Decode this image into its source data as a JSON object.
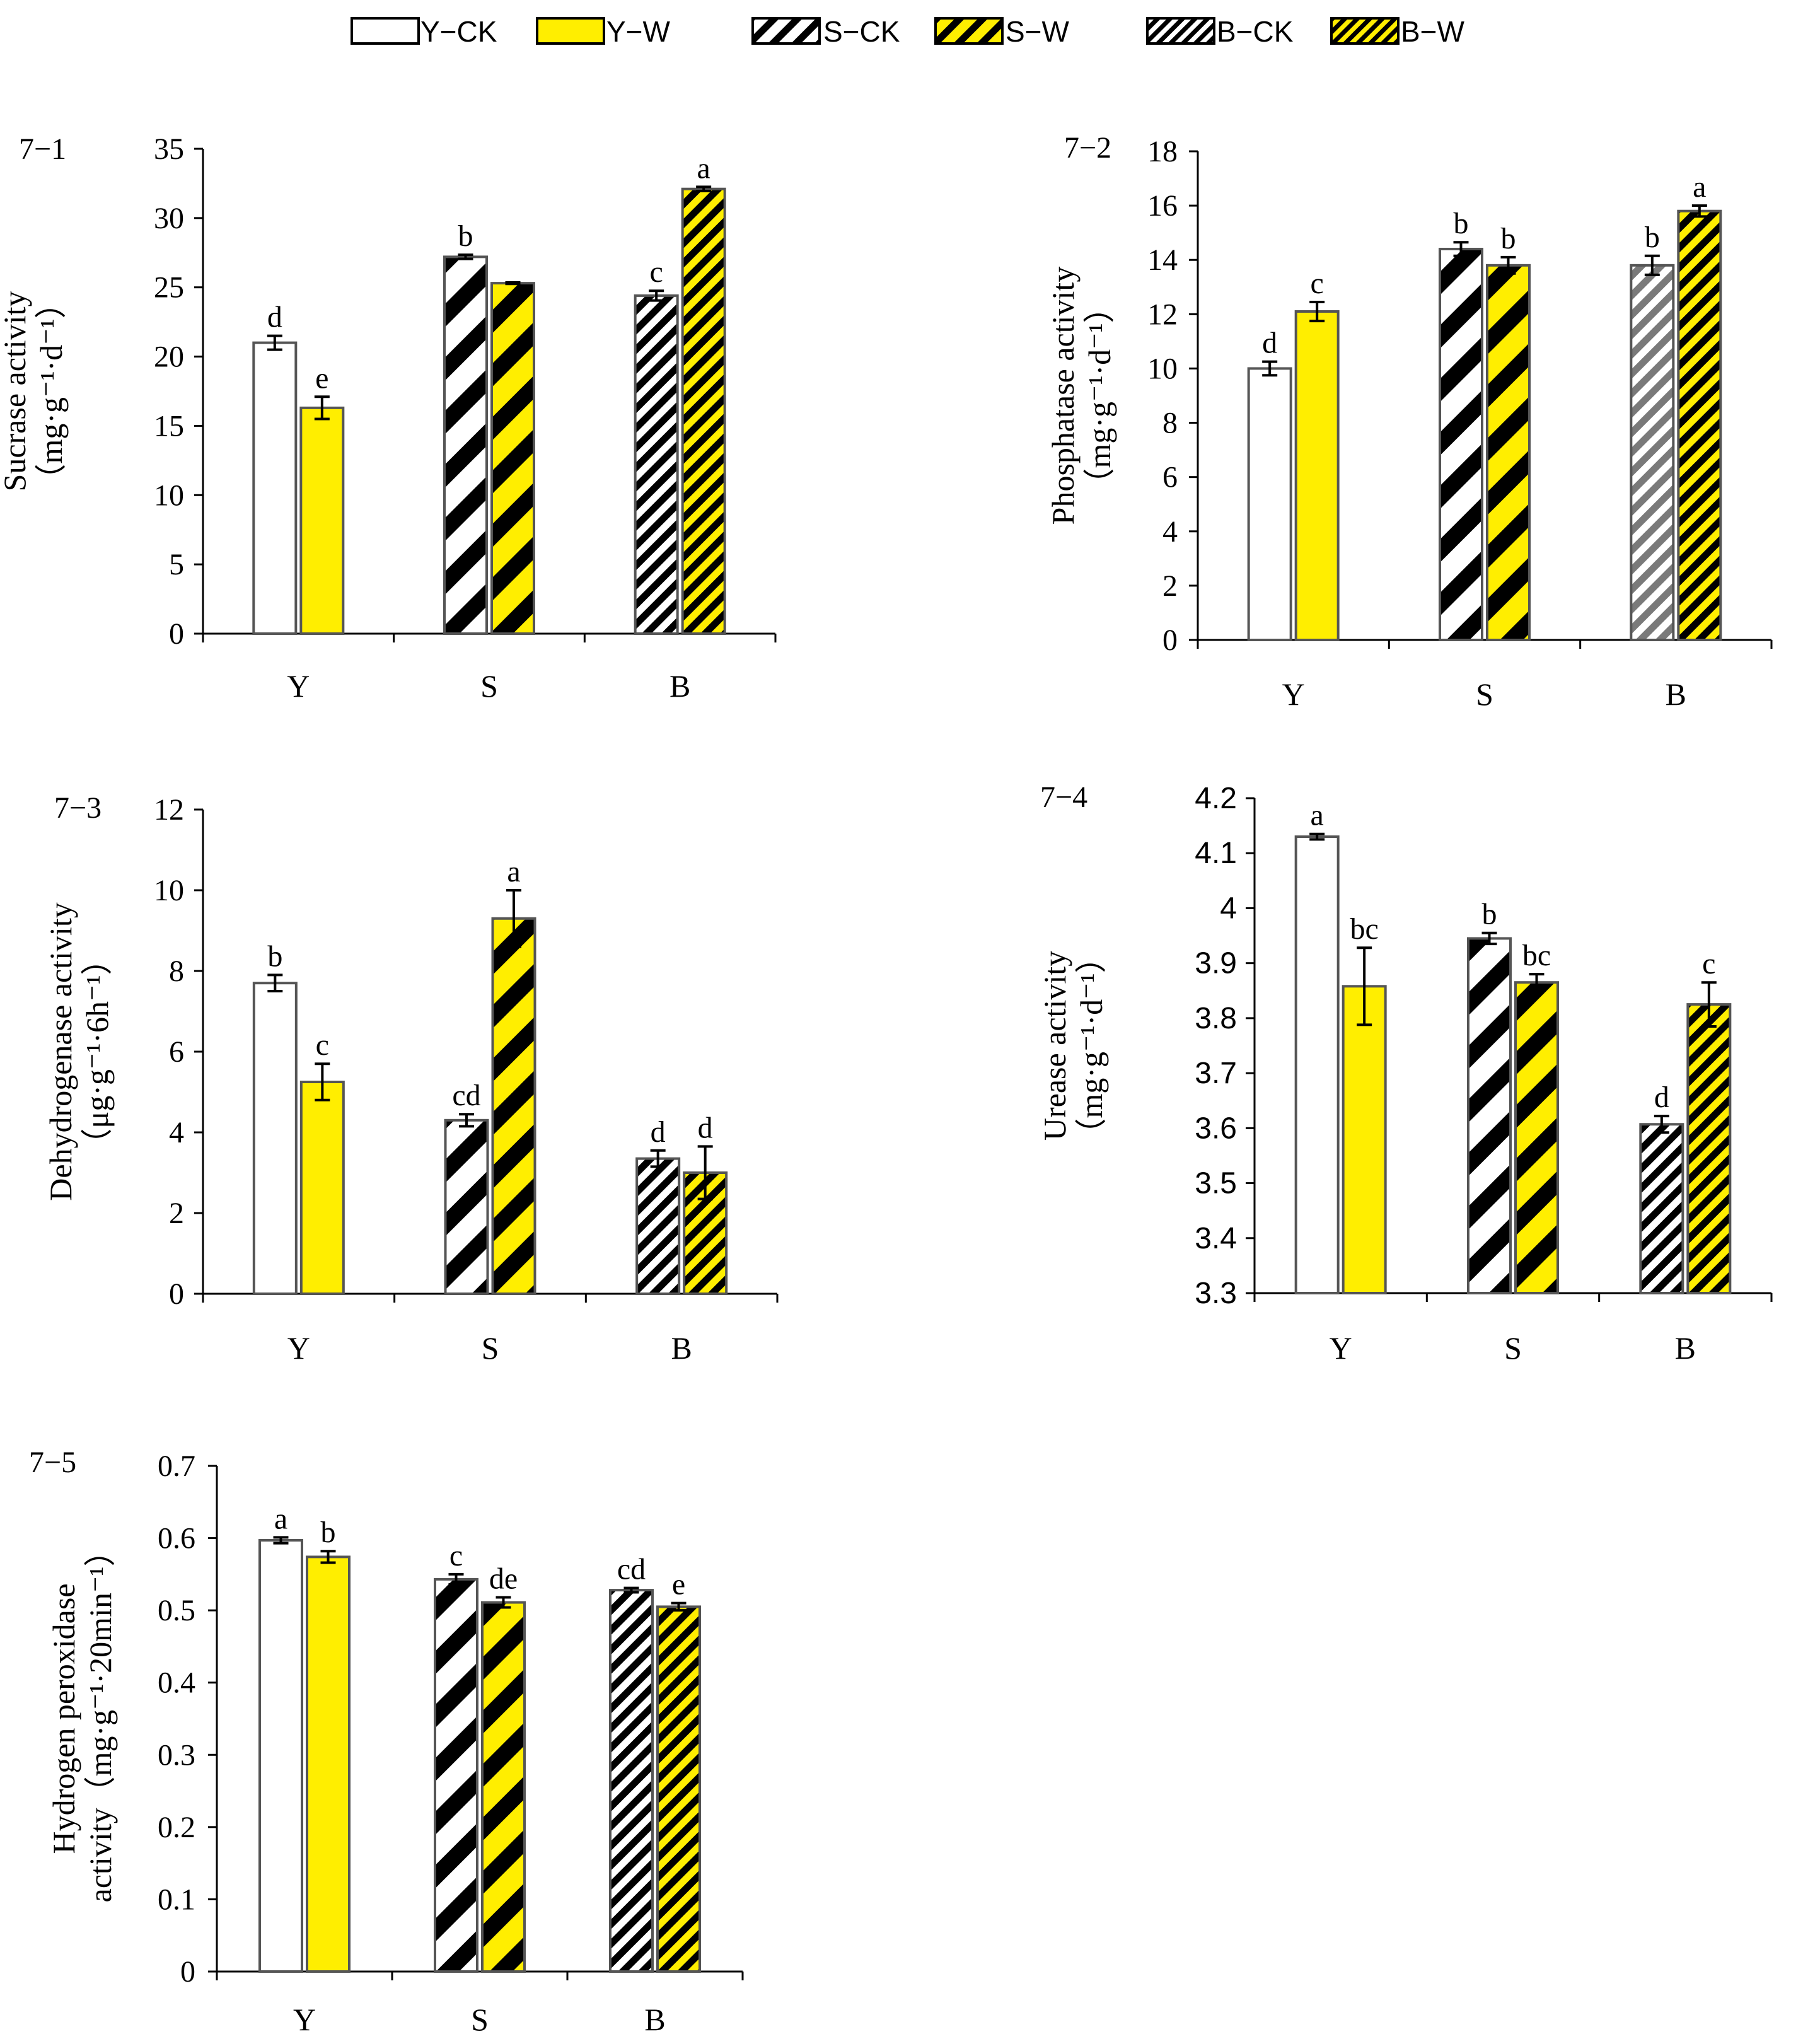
{
  "legend": [
    {
      "label": "Y−CK",
      "fill": "#ffffff",
      "pattern": "none"
    },
    {
      "label": "Y−W",
      "fill": "#ffee00",
      "pattern": "none"
    },
    {
      "label": "S−CK",
      "fill": "#ffffff",
      "pattern": "wide-diagonal"
    },
    {
      "label": "S−W",
      "fill": "#ffee00",
      "pattern": "wide-diagonal"
    },
    {
      "label": "B−CK",
      "fill": "#ffffff",
      "pattern": "narrow-diagonal"
    },
    {
      "label": "B−W",
      "fill": "#ffee00",
      "pattern": "narrow-diagonal"
    }
  ],
  "colors": {
    "yellow": "#ffee00",
    "stripe": "#000000",
    "grey_stripe": "#7a7a7a",
    "bar_outline": "#555555"
  },
  "chart_data": [
    {
      "id": "7-1",
      "type": "bar",
      "panel_label": "7−1",
      "ylabel": [
        "Sucrase activity",
        "（mg·g⁻¹·d⁻¹）"
      ],
      "categories": [
        "Y",
        "S",
        "B"
      ],
      "ylim": [
        0,
        35
      ],
      "yticks": [
        "0",
        "5",
        "10",
        "15",
        "20",
        "25",
        "30",
        "35"
      ],
      "series": [
        {
          "name": "CK",
          "values": [
            21.0,
            27.2,
            24.4
          ],
          "errors": [
            0.5,
            0.15,
            0.35
          ],
          "letters": [
            "d",
            "b",
            "c"
          ]
        },
        {
          "name": "W",
          "values": [
            16.3,
            25.3,
            32.1
          ],
          "errors": [
            0.8,
            0.05,
            0.15
          ],
          "letters": [
            "e",
            "",
            "a"
          ]
        }
      ]
    },
    {
      "id": "7-2",
      "type": "bar",
      "panel_label": "7−2",
      "ylabel": [
        "Phosphatase activity",
        "（mg·g⁻¹·d⁻¹）"
      ],
      "categories": [
        "Y",
        "S",
        "B"
      ],
      "ylim": [
        0,
        18
      ],
      "yticks": [
        "0",
        "2",
        "4",
        "6",
        "8",
        "10",
        "12",
        "14",
        "16",
        "18"
      ],
      "series": [
        {
          "name": "CK",
          "values": [
            10.0,
            14.4,
            13.8
          ],
          "errors": [
            0.25,
            0.25,
            0.35
          ],
          "letters": [
            "d",
            "b",
            "b"
          ]
        },
        {
          "name": "W",
          "values": [
            12.1,
            13.8,
            15.8
          ],
          "errors": [
            0.35,
            0.3,
            0.2
          ],
          "letters": [
            "c",
            "b",
            "a"
          ]
        }
      ]
    },
    {
      "id": "7-3",
      "type": "bar",
      "panel_label": "7−3",
      "ylabel": [
        "Dehydrogenase activity",
        "（μg·g⁻¹·6h⁻¹）"
      ],
      "categories": [
        "Y",
        "S",
        "B"
      ],
      "ylim": [
        0,
        12
      ],
      "yticks": [
        "0",
        "2",
        "4",
        "6",
        "8",
        "10",
        "12"
      ],
      "series": [
        {
          "name": "CK",
          "values": [
            7.7,
            4.3,
            3.35
          ],
          "errors": [
            0.2,
            0.15,
            0.2
          ],
          "letters": [
            "b",
            "cd",
            "d"
          ]
        },
        {
          "name": "W",
          "values": [
            5.25,
            9.3,
            3.0
          ],
          "errors": [
            0.45,
            0.7,
            0.65
          ],
          "letters": [
            "c",
            "a",
            "d"
          ]
        }
      ]
    },
    {
      "id": "7-4",
      "type": "bar",
      "panel_label": "7−4",
      "ylabel": [
        "Urease activity",
        "（mg·g⁻¹·d⁻¹）"
      ],
      "categories": [
        "Y",
        "S",
        "B"
      ],
      "ylim": [
        3.3,
        4.2
      ],
      "yticks": [
        "3.3",
        "3.4",
        "3.5",
        "3.6",
        "3.7",
        "3.8",
        "3.9",
        "4",
        "4.1",
        "4.2"
      ],
      "series": [
        {
          "name": "CK",
          "values": [
            4.13,
            3.945,
            3.607
          ],
          "errors": [
            0.005,
            0.01,
            0.015
          ],
          "letters": [
            "a",
            "b",
            "d"
          ]
        },
        {
          "name": "W",
          "values": [
            3.858,
            3.865,
            3.825
          ],
          "errors": [
            0.07,
            0.015,
            0.04
          ],
          "letters": [
            "bc",
            "bc",
            "c"
          ]
        }
      ]
    },
    {
      "id": "7-5",
      "type": "bar",
      "panel_label": "7−5",
      "ylabel": [
        "Hydrogen peroxidase",
        "activity（mg·g⁻¹·20min⁻¹）"
      ],
      "categories": [
        "Y",
        "S",
        "B"
      ],
      "ylim": [
        0,
        0.7
      ],
      "yticks": [
        "0",
        "0.1",
        "0.2",
        "0.3",
        "0.4",
        "0.5",
        "0.6",
        "0.7"
      ],
      "series": [
        {
          "name": "CK",
          "values": [
            0.597,
            0.543,
            0.528
          ],
          "errors": [
            0.004,
            0.007,
            0.003
          ],
          "letters": [
            "a",
            "c",
            "cd"
          ]
        },
        {
          "name": "W",
          "values": [
            0.574,
            0.511,
            0.505
          ],
          "errors": [
            0.008,
            0.007,
            0.005
          ],
          "letters": [
            "b",
            "de",
            "e"
          ]
        }
      ]
    }
  ]
}
